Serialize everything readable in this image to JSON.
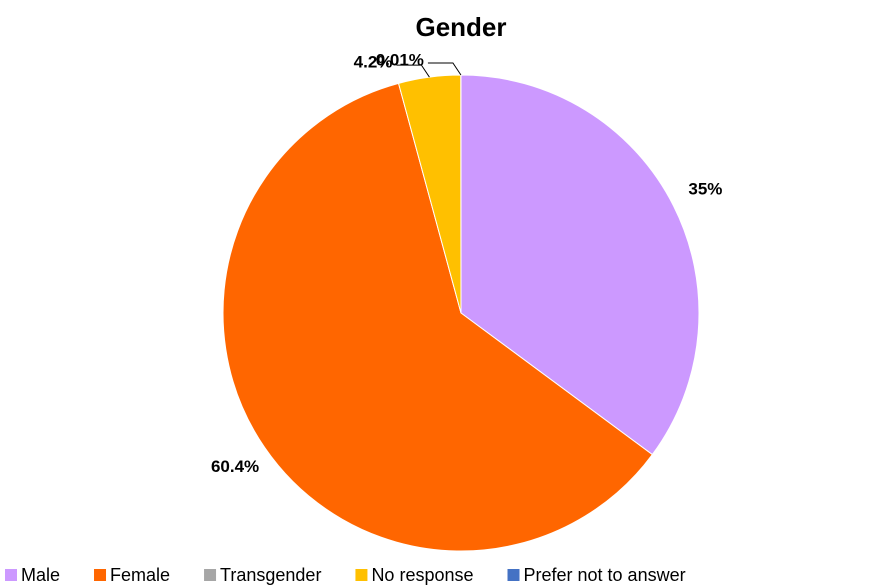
{
  "chart_data": {
    "type": "pie",
    "title": "Gender",
    "categories": [
      "Male",
      "Female",
      "Transgender",
      "No response",
      "Prefer not to answer"
    ],
    "values": [
      35,
      60.4,
      0,
      4.2,
      0.01
    ],
    "value_labels": [
      "35%",
      "60.4%",
      null,
      "4.2%",
      "0.01%"
    ],
    "colors": [
      "#cc99ff",
      "#ff6600",
      "#a6a6a6",
      "#ffc000",
      "#4472c4"
    ],
    "legend": "bottom"
  }
}
